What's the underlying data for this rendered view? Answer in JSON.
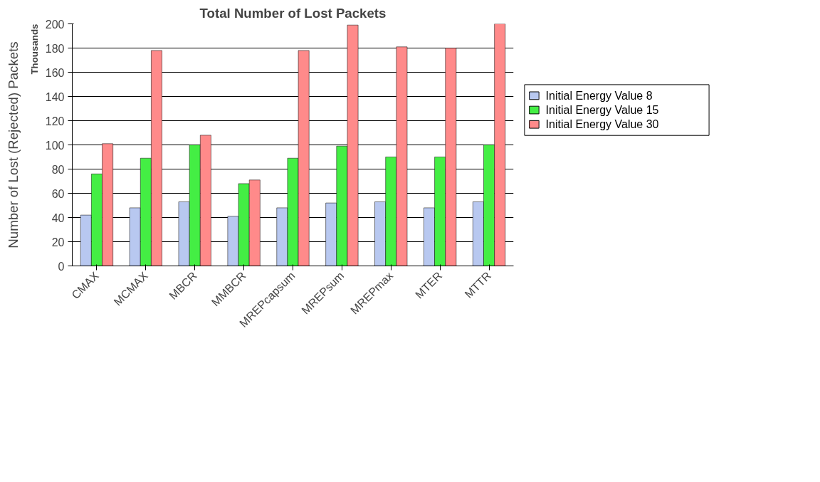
{
  "chart_data": {
    "type": "bar",
    "title": "Total Number of Lost Packets",
    "ylabel": "Number of Lost (Rejected) Packets",
    "annotations": [
      "Thousands"
    ],
    "categories": [
      "CMAX",
      "MCMAX",
      "MBCR",
      "MMBCR",
      "MREPcapsum",
      "MREPsum",
      "MREPmax",
      "MTER",
      "MTTR"
    ],
    "series": [
      {
        "name": "Initial Energy Value 8",
        "color": "#b8c8f0",
        "values": [
          42,
          48,
          53,
          41,
          48,
          52,
          53,
          48,
          53
        ]
      },
      {
        "name": "Initial Energy Value 15",
        "color": "#44ee44",
        "values": [
          76,
          89,
          100,
          68,
          89,
          99,
          90,
          90,
          100
        ]
      },
      {
        "name": "Initial Energy Value 30",
        "color": "#ff8a8a",
        "values": [
          101,
          178,
          108,
          71,
          178,
          199,
          181,
          180,
          200
        ]
      }
    ],
    "ylim": [
      0,
      200
    ],
    "yticks": [
      0,
      20,
      40,
      60,
      80,
      100,
      120,
      140,
      160,
      180,
      200
    ],
    "grid": "y",
    "legend": "right"
  }
}
